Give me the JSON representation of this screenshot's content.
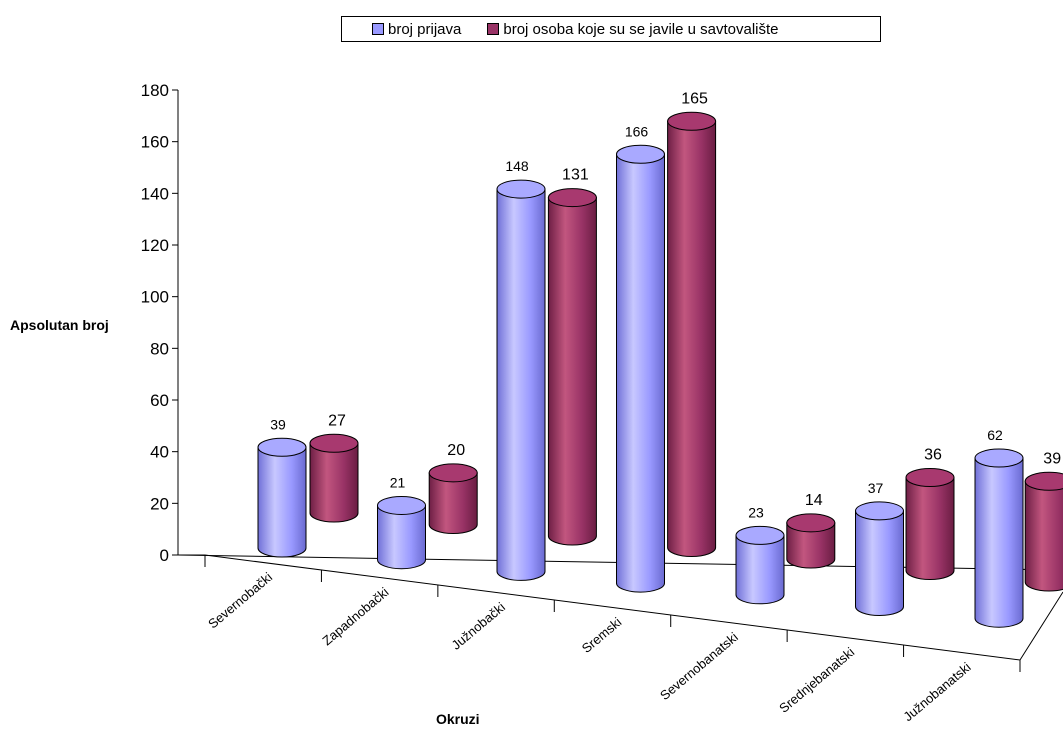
{
  "chart_data": {
    "type": "bar",
    "style": "3d-cylinder",
    "categories": [
      "Severnobački",
      "Zapadnobački",
      "Južnobački",
      "Sremski",
      "Severnobanatski",
      "Srednjebanatski",
      "Južnobanatski"
    ],
    "series": [
      {
        "name": "broj prijava",
        "values": [
          39,
          21,
          148,
          166,
          23,
          37,
          62
        ],
        "color": "#9999ff"
      },
      {
        "name": "broj osoba koje su se javile u savtovalište",
        "values": [
          27,
          20,
          131,
          165,
          14,
          36,
          39
        ],
        "color": "#993366"
      }
    ],
    "xlabel": "Okruzi",
    "ylabel": "Apsolutan broj",
    "ylim": [
      0,
      180
    ],
    "yticks": [
      0,
      20,
      40,
      60,
      80,
      100,
      120,
      140,
      160,
      180
    ],
    "legend": "top",
    "grid": false
  }
}
